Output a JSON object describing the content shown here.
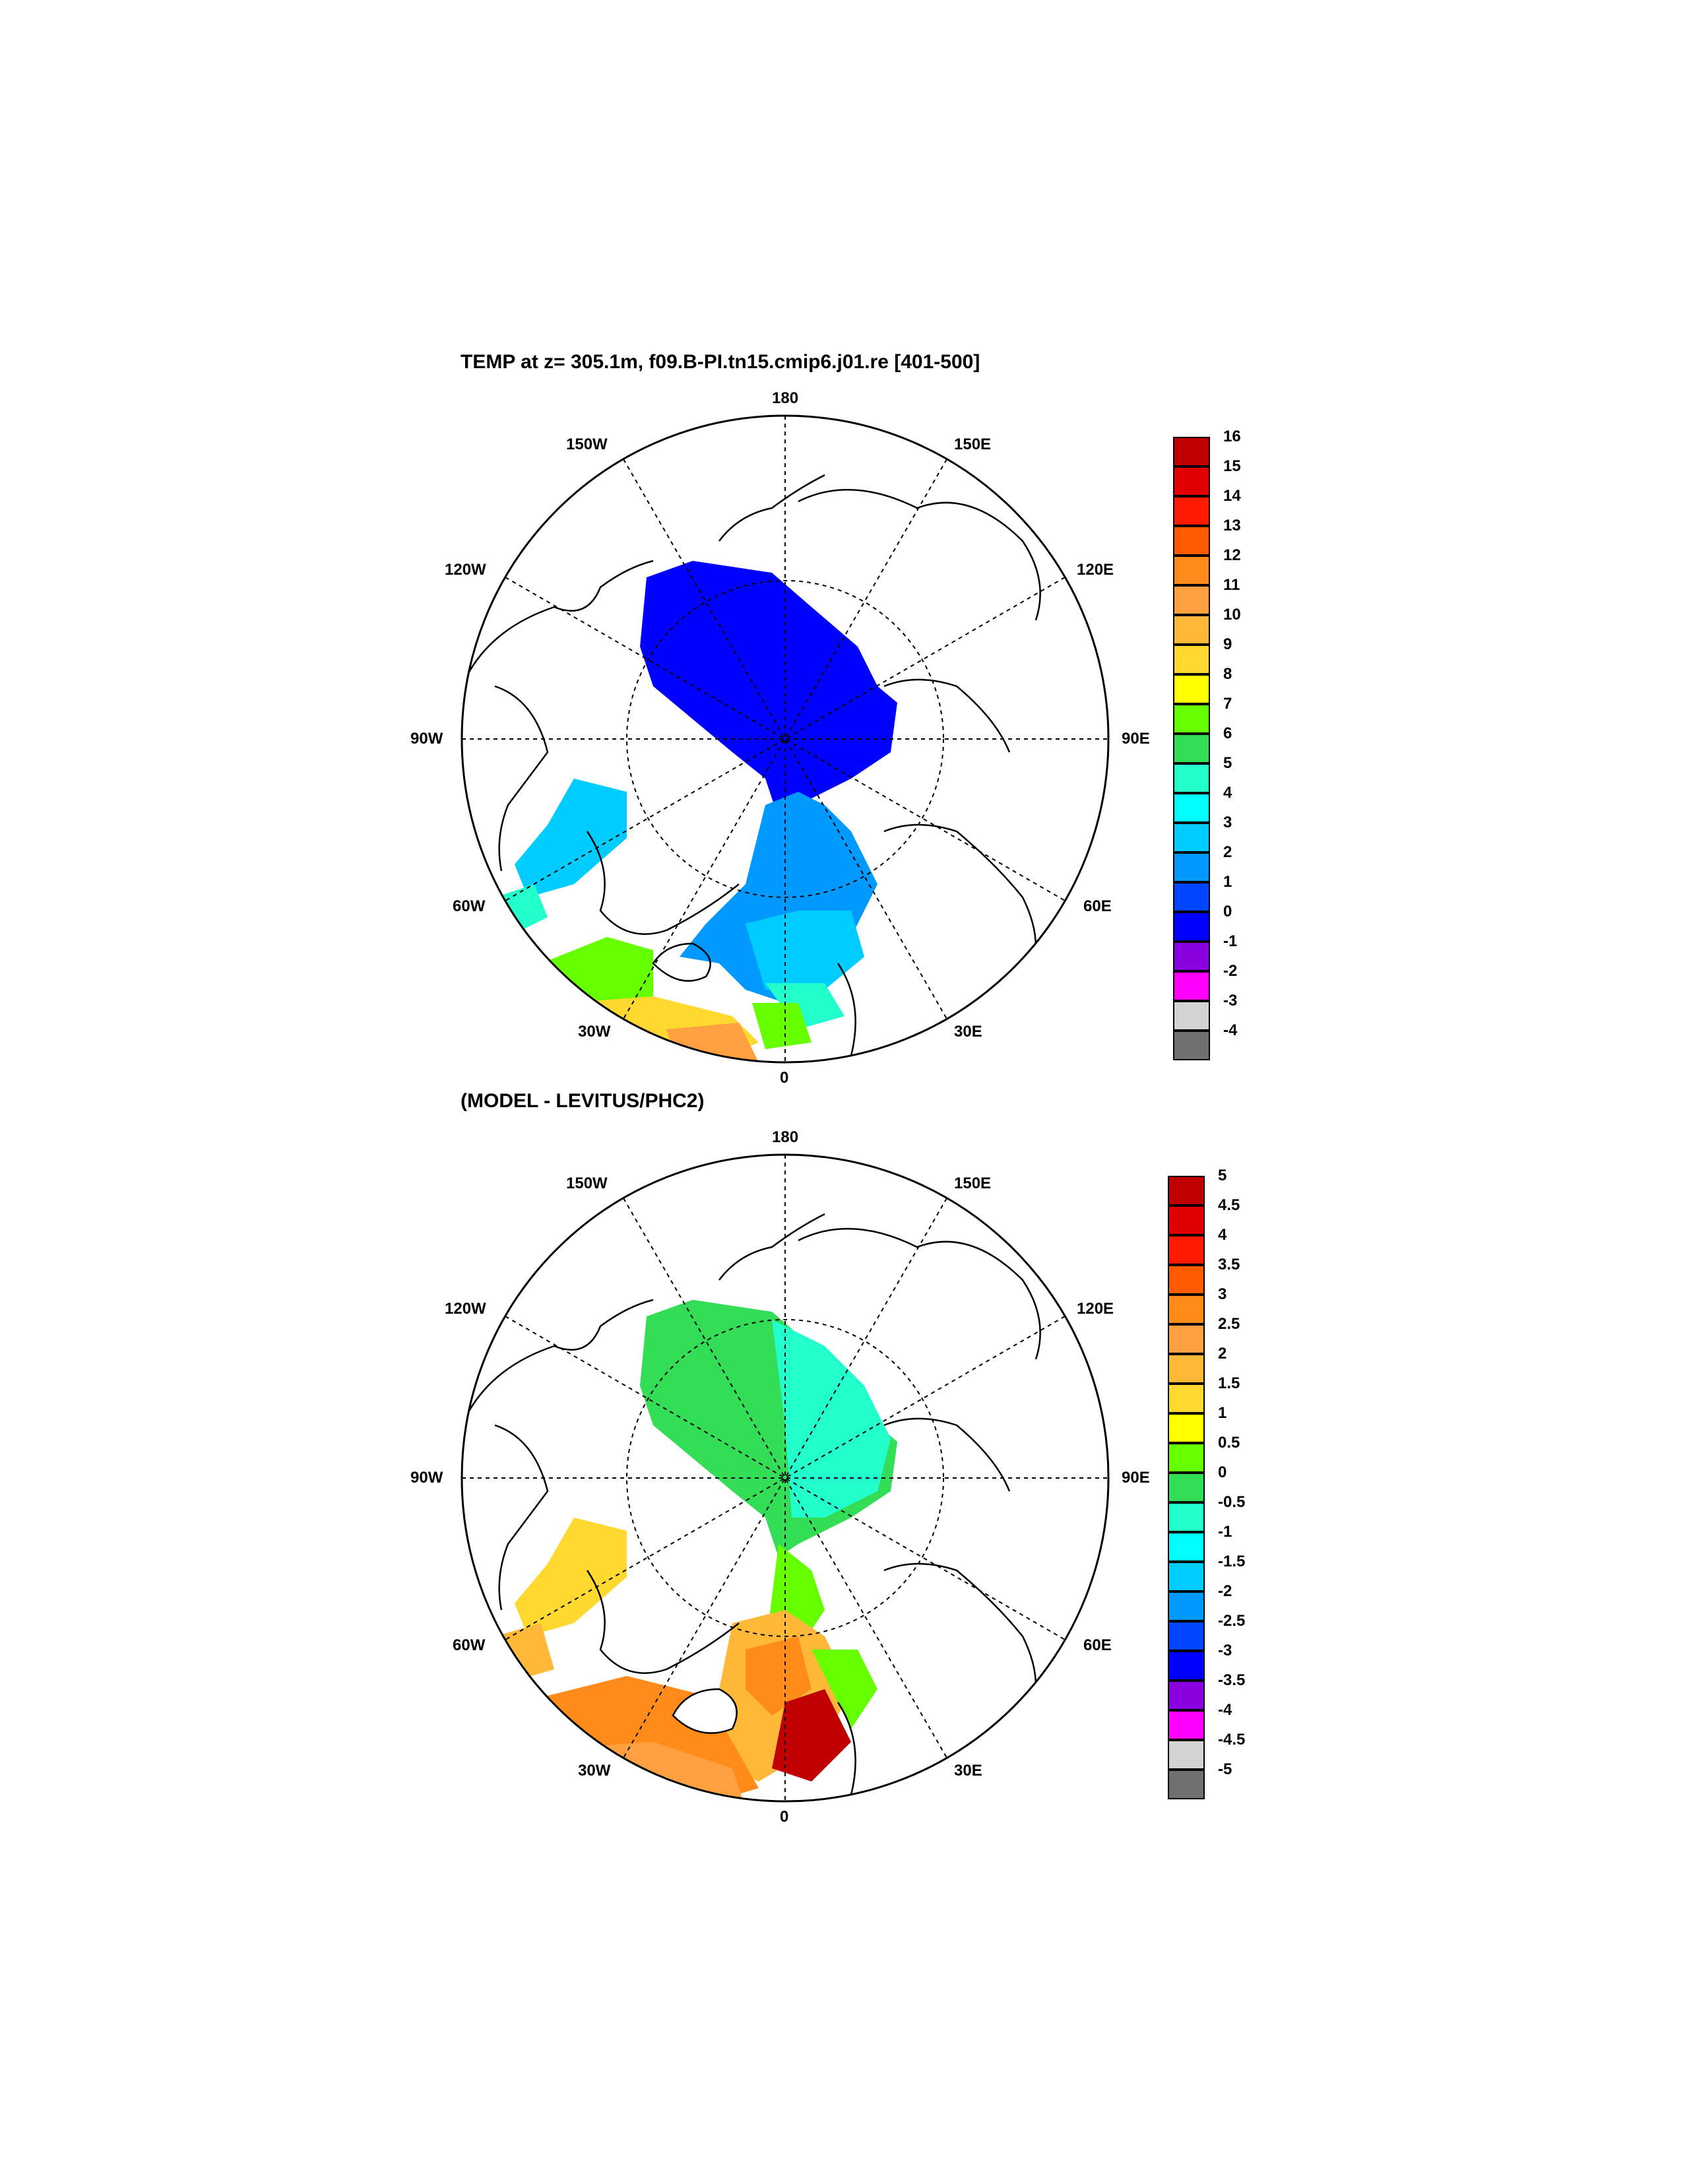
{
  "panels": [
    {
      "title": "TEMP at z= 305.1m, f09.B-PI.tn15.cmip6.j01.re [401-500]",
      "projection_labels": {
        "top": "180",
        "bottom": "0",
        "left": "90W",
        "right": "90E",
        "l150": "150W",
        "r150": "150E",
        "l120": "120W",
        "r120": "120E",
        "l60": "60W",
        "r60": "60E",
        "l30": "30W",
        "r30": "30E"
      },
      "colorbar": {
        "labels": [
          "16",
          "15",
          "14",
          "13",
          "12",
          "11",
          "10",
          "9",
          "8",
          "7",
          "6",
          "5",
          "4",
          "3",
          "2",
          "1",
          "0",
          "-1",
          "-2",
          "-3",
          "-4"
        ],
        "colors": [
          "#c00000",
          "#e00000",
          "#ff1a00",
          "#ff5a00",
          "#ff8c1a",
          "#ffa040",
          "#ffb838",
          "#ffd830",
          "#ffff00",
          "#66ff00",
          "#33dd55",
          "#22ffcc",
          "#00ffff",
          "#00ccff",
          "#0099ff",
          "#0044ff",
          "#0000ff",
          "#8800dd",
          "#ff00ff",
          "#d3d3d3",
          "#707070"
        ]
      }
    },
    {
      "title": "(MODEL - LEVITUS/PHC2)",
      "projection_labels": {
        "top": "180",
        "bottom": "0",
        "left": "90W",
        "right": "90E",
        "l150": "150W",
        "r150": "150E",
        "l120": "120W",
        "r120": "120E",
        "l60": "60W",
        "r60": "60E",
        "l30": "30W",
        "r30": "30E"
      },
      "colorbar": {
        "labels": [
          "5",
          "4.5",
          "4",
          "3.5",
          "3",
          "2.5",
          "2",
          "1.5",
          "1",
          "0.5",
          "0",
          "-0.5",
          "-1",
          "-1.5",
          "-2",
          "-2.5",
          "-3",
          "-3.5",
          "-4",
          "-4.5",
          "-5"
        ],
        "colors": [
          "#c00000",
          "#e00000",
          "#ff1a00",
          "#ff5a00",
          "#ff8c1a",
          "#ffa040",
          "#ffb838",
          "#ffd830",
          "#ffff00",
          "#66ff00",
          "#33dd55",
          "#22ffcc",
          "#00ffff",
          "#00ccff",
          "#0099ff",
          "#0044ff",
          "#0000ff",
          "#8800dd",
          "#ff00ff",
          "#d3d3d3",
          "#707070"
        ]
      }
    }
  ]
}
